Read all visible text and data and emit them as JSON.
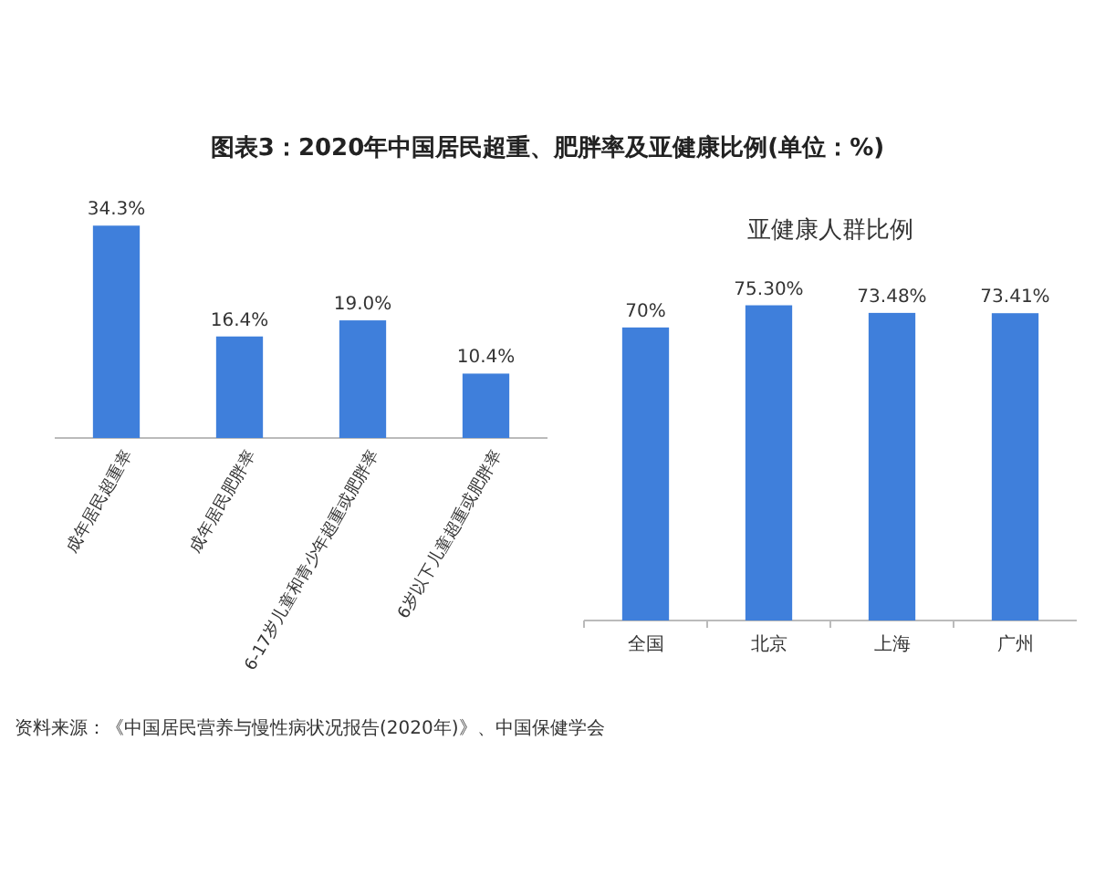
{
  "chart_data": [
    {
      "type": "bar",
      "title": "图表3：2020年中国居民超重、肥胖率及亚健康比例(单位：%)",
      "categories": [
        "成年居民超重率",
        "成年居民肥胖率",
        "6-17岁儿童和青少年超重或肥胖率",
        "6岁以下儿童超重或肥胖率"
      ],
      "series": [
        {
          "color": "#3f7fdb",
          "values": [
            34.3,
            16.4,
            19.0,
            10.4
          ],
          "value_labels": [
            "34.3%",
            "16.4%",
            "19.0%",
            "10.4%"
          ]
        }
      ],
      "annotations": [
        "资料来源：《中国居民营养与慢性病状况报告(2020年)》、中国保健学会"
      ]
    },
    {
      "type": "bar",
      "title": "亚健康人群比例",
      "categories": [
        "全国",
        "北京",
        "上海",
        "广州"
      ],
      "series": [
        {
          "color": "#3f7fdb",
          "values": [
            70,
            75.3,
            73.48,
            73.41
          ],
          "value_labels": [
            "70%",
            "75.30%",
            "73.48%",
            "73.41%"
          ]
        }
      ]
    }
  ]
}
